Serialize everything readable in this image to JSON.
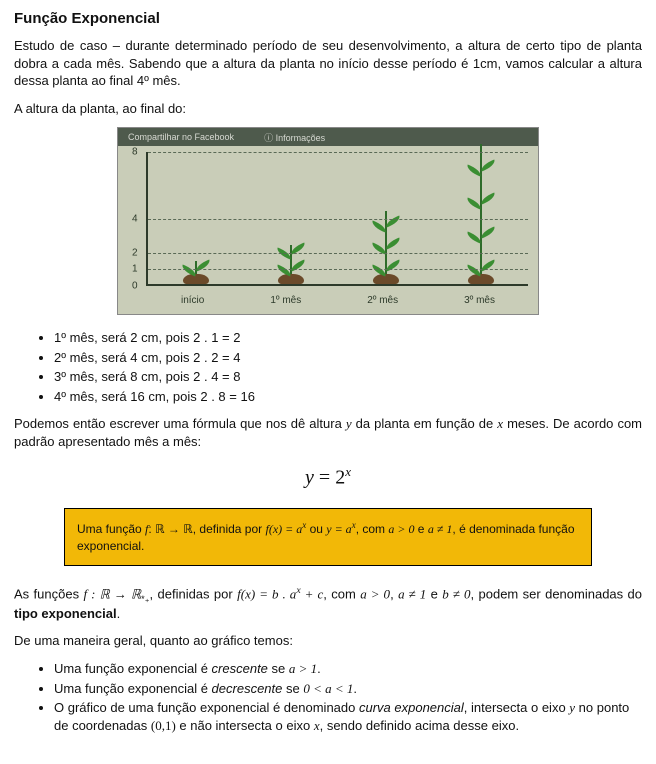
{
  "title": "Função Exponencial",
  "intro": "Estudo de caso – durante determinado período de seu desenvolvimento, a altura de certo tipo de planta dobra a cada mês. Sabendo que a altura da planta no início desse período é 1cm, vamos calcular a altura dessa planta ao final 4º mês.",
  "lead": "A altura da planta, ao final do:",
  "figure": {
    "topbar_left": "Compartilhar no Facebook",
    "topbar_right": "Informações",
    "y_ticks": [
      {
        "label": "8",
        "value": 8
      },
      {
        "label": "4",
        "value": 4
      },
      {
        "label": "2",
        "value": 2
      },
      {
        "label": "1",
        "value": 1
      },
      {
        "label": "0",
        "value": 0
      }
    ],
    "y_max": 8,
    "x_labels": [
      "início",
      "1º mês",
      "2º mês",
      "3º mês"
    ],
    "heights": [
      1,
      2,
      4,
      8
    ],
    "colors": {
      "background": "#c9cdb8",
      "topbar": "#4e5a4c",
      "axis": "#2d3a2a",
      "stem": "#2e6b2a",
      "leaf": "#3a8e32",
      "mound": "#6b4a2a",
      "grid": "#5a6a56"
    }
  },
  "months": [
    "1º mês, será 2 cm, pois 2 . 1 = 2",
    "2º mês, será 4 cm, pois 2 . 2 = 4",
    "3º mês, será 8 cm, pois 2 . 4 = 8",
    "4º mês, será 16 cm, pois 2 . 8 = 16"
  ],
  "formula_intro_a": "Podemos então escrever uma fórmula que nos dê altura ",
  "formula_intro_b": "  da planta em função de ",
  "formula_intro_c": " meses. De acordo com padrão apresentado mês a mês:",
  "var_y": "y",
  "var_x": "x",
  "equation_lhs": "y",
  "equation_eq": " = ",
  "equation_base": "2",
  "equation_exp": "x",
  "defbox": {
    "t1": "Uma função ",
    "f": "f",
    "colon": ": ",
    "R": "ℝ",
    "arrow": " → ",
    "t2": ", definida por ",
    "fx": "f(x) = a",
    "sup_x": "x",
    "t3": " ou ",
    "yeq": "y = a",
    "t4": ", com ",
    "a_gt0": "a > 0",
    "t5": " e ",
    "a_ne1": "a ≠ 1",
    "t6": ", é denominada função exponencial."
  },
  "type_exp": {
    "t1": "As funções ",
    "map": "f : ℝ → ℝ",
    "star_plus": "*₊",
    "t2": ", definidas por ",
    "fx": "f(x) = b . a",
    "sup_x": "x",
    "plus_c": " + c",
    "t3": ", com ",
    "c1": "a > 0",
    "t4": ", ",
    "c2": "a ≠ 1",
    "t5": " e ",
    "c3": "b ≠ 0",
    "t6": ", podem ser denominadas do ",
    "bold": "tipo exponencial",
    "t7": "."
  },
  "graph_intro": "De uma maneira geral, quanto ao gráfico temos:",
  "graph_bullets": {
    "b1a": "Uma função exponencial é ",
    "b1i": "crescente",
    "b1b": " se ",
    "b1m": "a > 1",
    "b1c": ".",
    "b2a": "Uma função exponencial é ",
    "b2i": "decrescente",
    "b2b": " se ",
    "b2m": "0 < a < 1",
    "b2c": ".",
    "b3a": "O gráfico de uma função exponencial é denominado ",
    "b3i": "curva exponencial",
    "b3b": ", intersecta o eixo ",
    "b3y": "y",
    "b3c": " no ponto de coordenadas ",
    "b3p": "(0,1)",
    "b3d": " e não intersecta o eixo ",
    "b3x": "x",
    "b3e": ", sendo definido acima desse eixo."
  }
}
